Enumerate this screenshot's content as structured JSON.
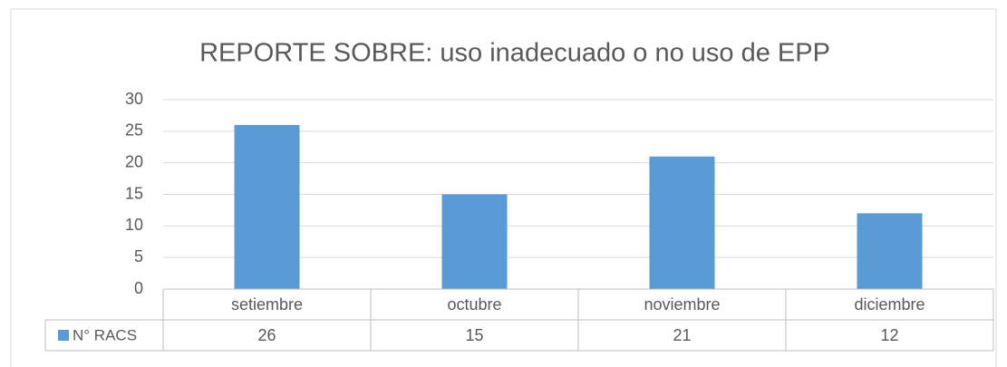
{
  "chart_data": {
    "type": "bar",
    "title": "REPORTE SOBRE: uso inadecuado o no uso de EPP",
    "categories": [
      "setiembre",
      "octubre",
      "noviembre",
      "diciembre"
    ],
    "series": [
      {
        "name": "N° RACS",
        "color": "#5b9bd5",
        "values": [
          26,
          15,
          21,
          12
        ]
      }
    ],
    "ylim": [
      0,
      30
    ],
    "yticks": [
      0,
      5,
      10,
      15,
      20,
      25,
      30
    ],
    "grid": true,
    "data_table": true
  }
}
